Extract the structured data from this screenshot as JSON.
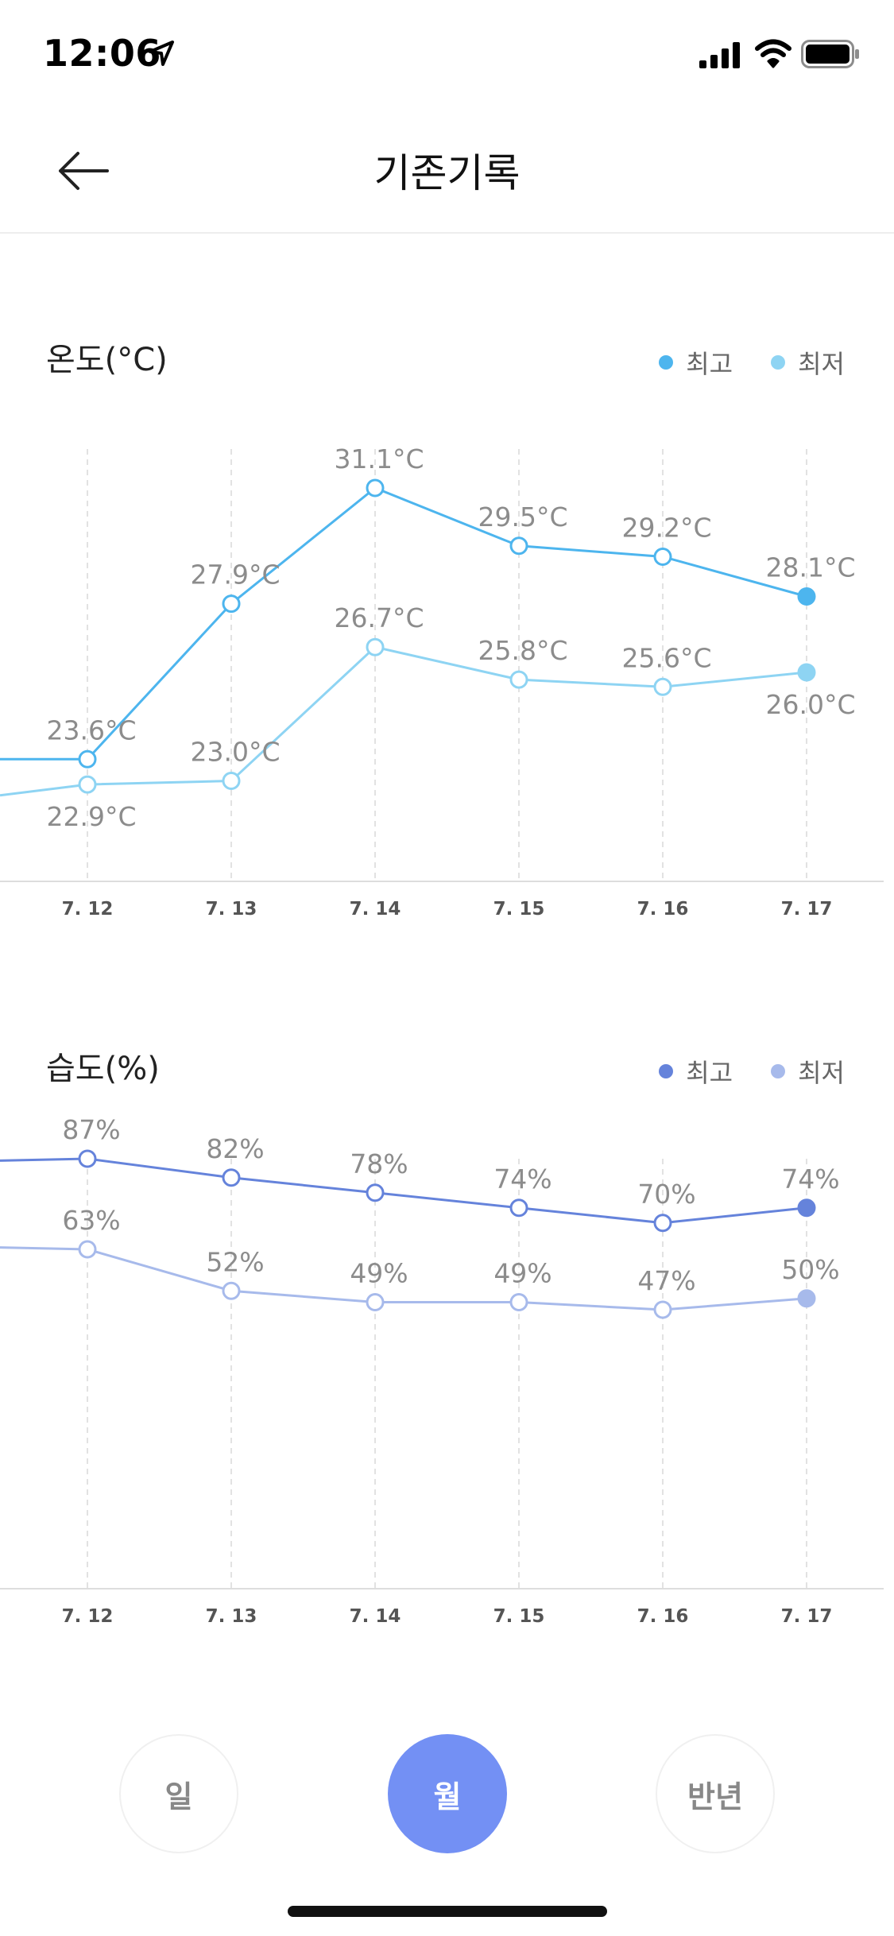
{
  "status_bar": {
    "time": "12:06"
  },
  "header": {
    "title": "기존기록"
  },
  "temperature": {
    "title": "온도(°C)",
    "legend": {
      "max_label": "최고",
      "min_label": "최저"
    }
  },
  "humidity": {
    "title": "습도(%)",
    "legend": {
      "max_label": "최고",
      "min_label": "최저"
    }
  },
  "period_tabs": {
    "day": "일",
    "month": "월",
    "half_year": "반년",
    "selected": "월"
  },
  "colors": {
    "temp_max": "#4db5ee",
    "temp_min": "#8ed4f3",
    "hum_max": "#6583db",
    "hum_min": "#a7baeb",
    "accent": "#7390f4"
  },
  "chart_data": [
    {
      "type": "line",
      "title": "온도(°C)",
      "categories": [
        "7. 12",
        "7. 13",
        "7. 14",
        "7. 15",
        "7. 16",
        "7. 17"
      ],
      "series": [
        {
          "name": "최고",
          "values": [
            23.6,
            27.9,
            31.1,
            29.5,
            29.2,
            28.1
          ],
          "labels": [
            "23.6°C",
            "27.9°C",
            "31.1°C",
            "29.5°C",
            "29.2°C",
            "28.1°C"
          ]
        },
        {
          "name": "최저",
          "values": [
            22.9,
            23.0,
            26.7,
            25.8,
            25.6,
            26.0
          ],
          "labels": [
            "22.9°C",
            "23.0°C",
            "26.7°C",
            "25.8°C",
            "25.6°C",
            "26.0°C"
          ]
        }
      ],
      "grid": "vertical-dashed",
      "legend_position": "top-right"
    },
    {
      "type": "line",
      "title": "습도(%)",
      "categories": [
        "7. 12",
        "7. 13",
        "7. 14",
        "7. 15",
        "7. 16",
        "7. 17"
      ],
      "series": [
        {
          "name": "최고",
          "values": [
            87,
            82,
            78,
            74,
            70,
            74
          ],
          "labels": [
            "87%",
            "82%",
            "78%",
            "74%",
            "70%",
            "74%"
          ]
        },
        {
          "name": "최저",
          "values": [
            63,
            52,
            49,
            49,
            47,
            50
          ],
          "labels": [
            "63%",
            "52%",
            "49%",
            "49%",
            "47%",
            "50%"
          ]
        }
      ],
      "grid": "vertical-dashed",
      "legend_position": "top-right"
    }
  ]
}
